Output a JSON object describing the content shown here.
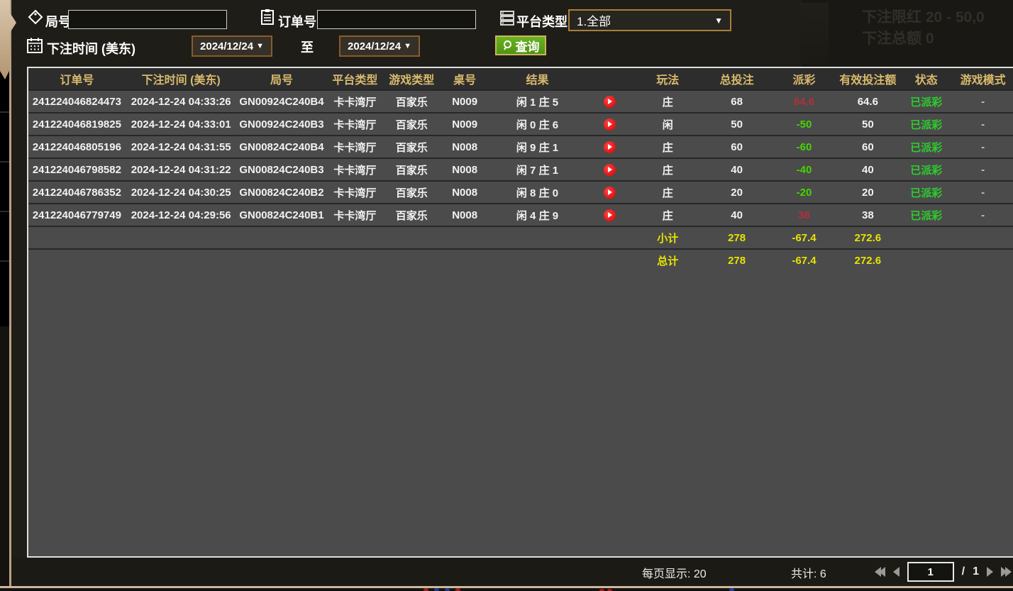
{
  "filters": {
    "round_label": "局号",
    "round_value": "",
    "order_label": "订单号",
    "order_value": "",
    "platform_label": "平台类型",
    "platform_value": "1.全部",
    "bet_time_label": "下注时间 (美东)",
    "date_from": "2024/12/24",
    "to_label": "至",
    "date_to": "2024/12/24",
    "query_label": "查询"
  },
  "background": {
    "limit_text": "下注限红  20 - 50,0",
    "total_text": "下注总额  0"
  },
  "table": {
    "headers": [
      "订单号",
      "下注时间 (美东)",
      "局号",
      "平台类型",
      "游戏类型",
      "桌号",
      "结果",
      "",
      "玩法",
      "总投注",
      "派彩",
      "有效投注额",
      "状态",
      "游戏模式"
    ],
    "rows": [
      {
        "order": "241224046824473",
        "time": "2024-12-24 04:33:26",
        "round": "GN00924C240B4",
        "platform": "卡卡湾厅",
        "game": "百家乐",
        "table": "N009",
        "result": "闲 1 庄 5",
        "play": "庄",
        "bet": "68",
        "payout": "64.6",
        "payout_color": "red",
        "valid": "64.6",
        "status": "已派彩",
        "mode": "-"
      },
      {
        "order": "241224046819825",
        "time": "2024-12-24 04:33:01",
        "round": "GN00924C240B3",
        "platform": "卡卡湾厅",
        "game": "百家乐",
        "table": "N009",
        "result": "闲 0 庄 6",
        "play": "闲",
        "bet": "50",
        "payout": "-50",
        "payout_color": "green",
        "valid": "50",
        "status": "已派彩",
        "mode": "-"
      },
      {
        "order": "241224046805196",
        "time": "2024-12-24 04:31:55",
        "round": "GN00824C240B4",
        "platform": "卡卡湾厅",
        "game": "百家乐",
        "table": "N008",
        "result": "闲 9 庄 1",
        "play": "庄",
        "bet": "60",
        "payout": "-60",
        "payout_color": "green",
        "valid": "60",
        "status": "已派彩",
        "mode": "-"
      },
      {
        "order": "241224046798582",
        "time": "2024-12-24 04:31:22",
        "round": "GN00824C240B3",
        "platform": "卡卡湾厅",
        "game": "百家乐",
        "table": "N008",
        "result": "闲 7 庄 1",
        "play": "庄",
        "bet": "40",
        "payout": "-40",
        "payout_color": "green",
        "valid": "40",
        "status": "已派彩",
        "mode": "-"
      },
      {
        "order": "241224046786352",
        "time": "2024-12-24 04:30:25",
        "round": "GN00824C240B2",
        "platform": "卡卡湾厅",
        "game": "百家乐",
        "table": "N008",
        "result": "闲 8 庄 0",
        "play": "庄",
        "bet": "20",
        "payout": "-20",
        "payout_color": "green",
        "valid": "20",
        "status": "已派彩",
        "mode": "-"
      },
      {
        "order": "241224046779749",
        "time": "2024-12-24 04:29:56",
        "round": "GN00824C240B1",
        "platform": "卡卡湾厅",
        "game": "百家乐",
        "table": "N008",
        "result": "闲 4 庄 9",
        "play": "庄",
        "bet": "40",
        "payout": "38",
        "payout_color": "red",
        "valid": "38",
        "status": "已派彩",
        "mode": "-"
      }
    ],
    "subtotal": {
      "label": "小计",
      "bet": "278",
      "payout": "-67.4",
      "valid": "272.6"
    },
    "total": {
      "label": "总计",
      "bet": "278",
      "payout": "-67.4",
      "valid": "272.6"
    }
  },
  "footer": {
    "per_page_text": "每页显示: 20",
    "count_text": "共计: 6",
    "page": "1",
    "page_sep": "/",
    "page_count": "1"
  },
  "colors": {
    "header_gold": "#d9ba6d",
    "totals_yellow": "#e6e300",
    "status_green": "#2ecc2e",
    "loss_green": "#46d400",
    "win_red": "#b12f3c",
    "query_green": "#5ea31c",
    "date_border": "#8a5c28",
    "dropdown_border": "#a97e3a"
  }
}
